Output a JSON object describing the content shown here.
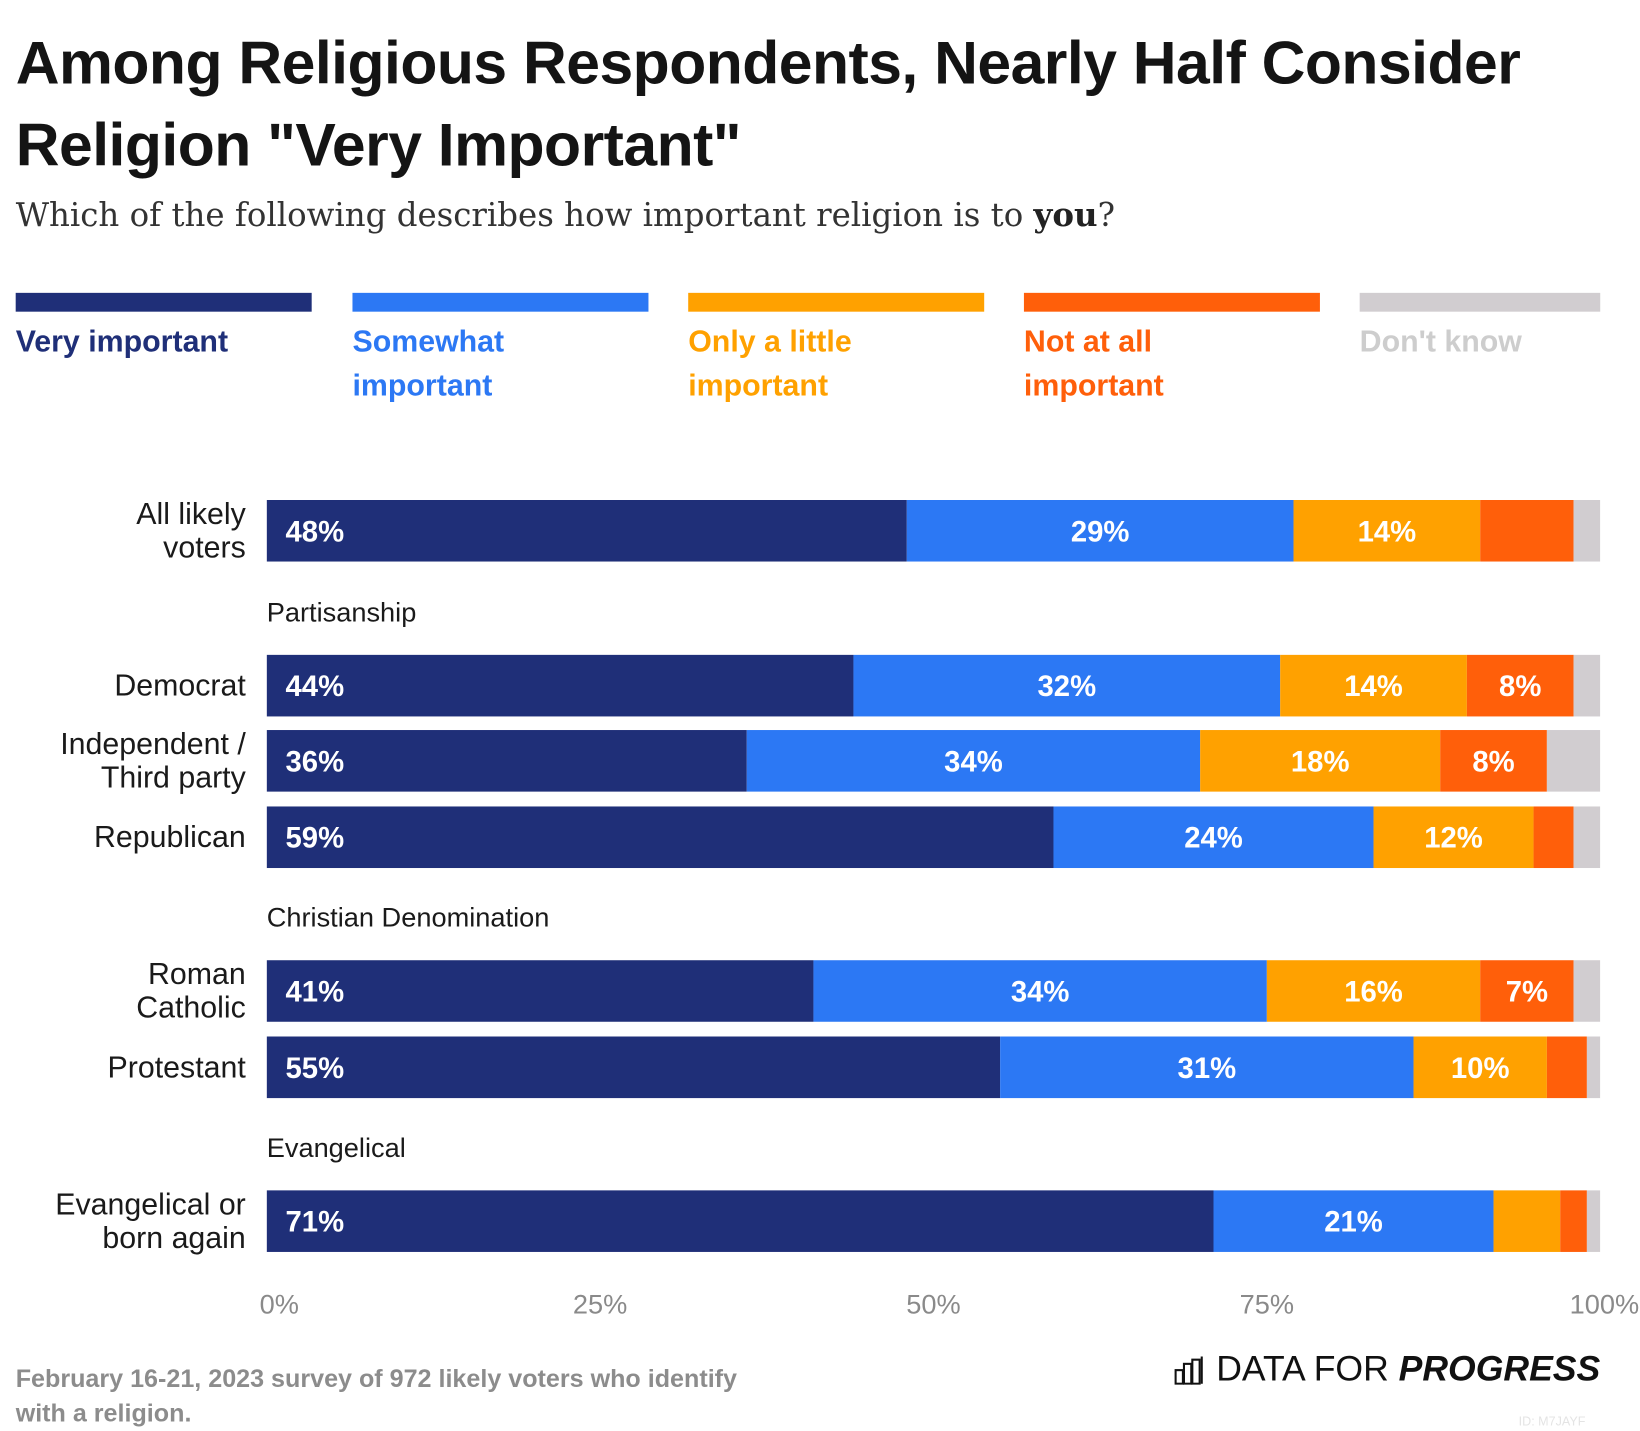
{
  "chart_data": {
    "type": "bar",
    "orientation": "horizontal-stacked",
    "title": "Among Religious Respondents, Nearly Half Consider Religion \"Very Important\"",
    "subtitle_pre": "Which of the following describes how important religion is to ",
    "subtitle_bold": "you",
    "subtitle_post": "?",
    "xlim": [
      0,
      100
    ],
    "x_ticks": [
      "0%",
      "25%",
      "50%",
      "75%",
      "100%"
    ],
    "series": [
      {
        "name": "Very important",
        "color": "#1F2F78"
      },
      {
        "name": "Somewhat important",
        "color": "#2C78F4"
      },
      {
        "name": "Only a little important",
        "color": "#FFA100"
      },
      {
        "name": "Not at all important",
        "color": "#FF5F0A"
      },
      {
        "name": "Don't know",
        "color": "#D1CDD0"
      }
    ],
    "legend_lines": [
      [
        "Very important"
      ],
      [
        "Somewhat",
        "important"
      ],
      [
        "Only a little",
        "important"
      ],
      [
        "Not at all",
        "important"
      ],
      [
        "Don't know"
      ]
    ],
    "groups": [
      {
        "heading": "",
        "rows": [
          {
            "label": [
              "All likely",
              "voters"
            ],
            "values": [
              48,
              29,
              14,
              7,
              2
            ],
            "labels": [
              "48%",
              "29%",
              "14%",
              "",
              ""
            ]
          }
        ]
      },
      {
        "heading": "Partisanship",
        "rows": [
          {
            "label": [
              "Democrat"
            ],
            "values": [
              44,
              32,
              14,
              8,
              2
            ],
            "labels": [
              "44%",
              "32%",
              "14%",
              "8%",
              ""
            ]
          },
          {
            "label": [
              "Independent /",
              "Third party"
            ],
            "values": [
              36,
              34,
              18,
              8,
              4
            ],
            "labels": [
              "36%",
              "34%",
              "18%",
              "8%",
              ""
            ]
          },
          {
            "label": [
              "Republican"
            ],
            "values": [
              59,
              24,
              12,
              3,
              2
            ],
            "labels": [
              "59%",
              "24%",
              "12%",
              "",
              ""
            ]
          }
        ]
      },
      {
        "heading": "Christian Denomination",
        "rows": [
          {
            "label": [
              "Roman",
              "Catholic"
            ],
            "values": [
              41,
              34,
              16,
              7,
              2
            ],
            "labels": [
              "41%",
              "34%",
              "16%",
              "7%",
              ""
            ]
          },
          {
            "label": [
              "Protestant"
            ],
            "values": [
              55,
              31,
              10,
              3,
              1
            ],
            "labels": [
              "55%",
              "31%",
              "10%",
              "",
              ""
            ]
          }
        ]
      },
      {
        "heading": "Evangelical",
        "rows": [
          {
            "label": [
              "Evangelical or",
              "born again"
            ],
            "values": [
              71,
              21,
              5,
              2,
              1
            ],
            "labels": [
              "71%",
              "21%",
              "",
              "",
              ""
            ]
          }
        ]
      }
    ]
  },
  "footer": {
    "note_line1": "February 16-21, 2023 survey of 972 likely voters who identify",
    "note_line2": "with a religion.",
    "logo_light": "DATA FOR",
    "logo_bold": "PROGRESS",
    "id": "ID: M7JAYF"
  }
}
